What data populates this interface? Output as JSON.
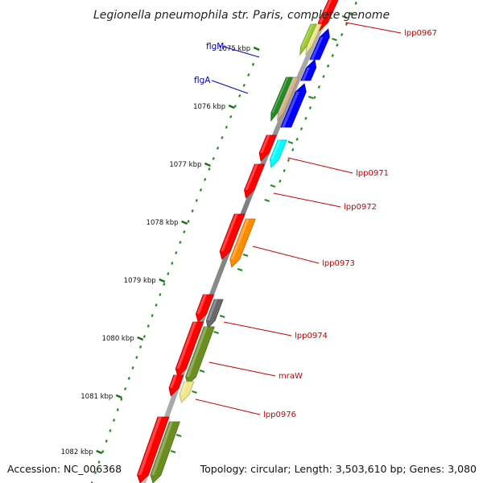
{
  "title": "Legionella pneumophila str. Paris, complete genome",
  "footer": {
    "accession": "Accession: NC_006368",
    "summary": "Topology: circular; Length: 3,503,610 bp; Genes: 3,080"
  },
  "ticks": [
    "1075 kbp",
    "1076 kbp",
    "1077 kbp",
    "1078 kbp",
    "1079 kbp",
    "1080 kbp",
    "1081 kbp",
    "1082 kbp"
  ],
  "genes_left": [
    {
      "name": "flgM",
      "color": "#0000cc"
    },
    {
      "name": "flgA",
      "color": "#0000cc"
    }
  ],
  "genes_right": [
    {
      "name": "lpp0967",
      "color": "#cc0000"
    },
    {
      "name": "lpp0971",
      "color": "#cc0000"
    },
    {
      "name": "lpp0972",
      "color": "#cc0000"
    },
    {
      "name": "lpp0973",
      "color": "#cc0000"
    },
    {
      "name": "lpp0974",
      "color": "#cc0000"
    },
    {
      "name": "mraW",
      "color": "#cc0000"
    },
    {
      "name": "lpp0976",
      "color": "#cc0000"
    }
  ],
  "colors": {
    "backbone": "#888888",
    "feature_red": "#ff0000",
    "feature_blue": "#0000ff",
    "feature_cyan": "#00ffff",
    "feature_orange": "#ff8c00",
    "feature_olive": "#6b8e23",
    "feature_darkgreen": "#228b22",
    "feature_gray": "#696969",
    "feature_khaki": "#f0e68c",
    "feature_tan": "#d2b48c",
    "feature_yellowgreen": "#9acd32",
    "dots": "#228b22"
  }
}
